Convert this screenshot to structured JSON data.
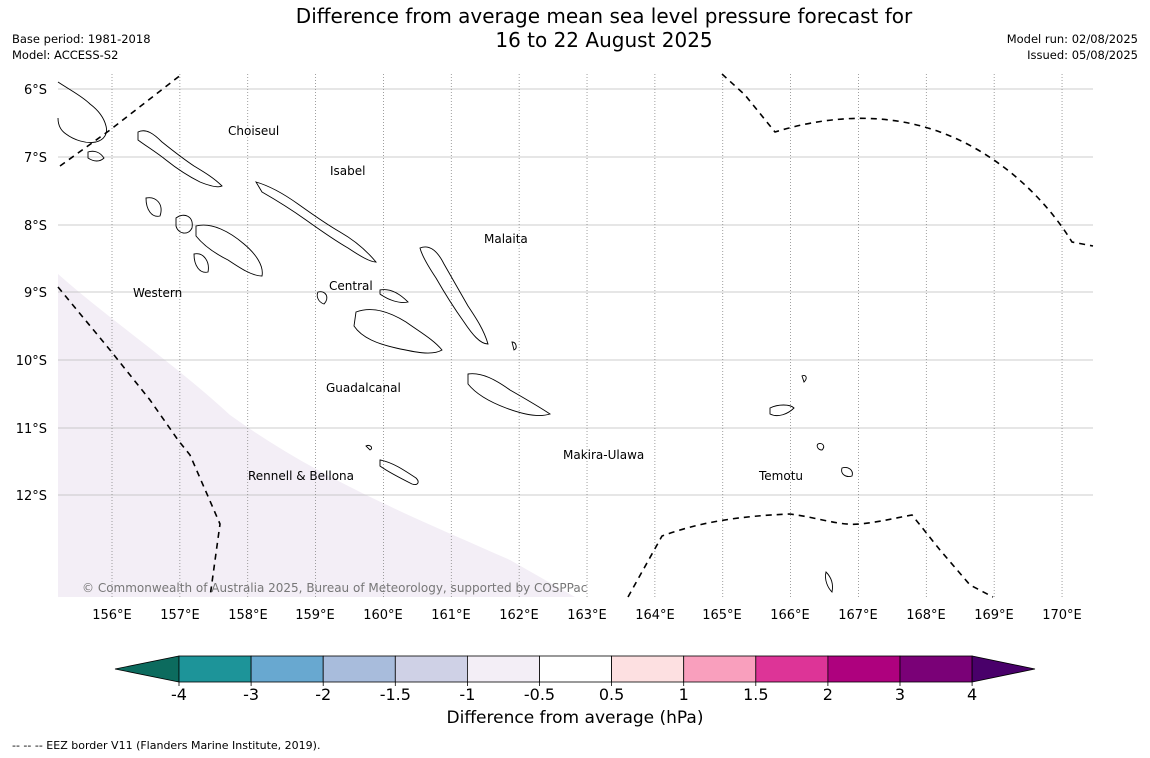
{
  "title": {
    "line1": "Difference from average mean sea level pressure forecast for",
    "line2": "16 to 22 August 2025"
  },
  "meta_left": {
    "base_period": "Base period: 1981-2018",
    "model": "Model: ACCESS-S2"
  },
  "meta_right": {
    "model_run": "Model run: 02/08/2025",
    "issued": "Issued: 05/08/2025"
  },
  "map": {
    "lat_labels": [
      "6°S",
      "7°S",
      "8°S",
      "9°S",
      "10°S",
      "11°S",
      "12°S"
    ],
    "lon_labels": [
      "156°E",
      "157°E",
      "158°E",
      "159°E",
      "160°E",
      "161°E",
      "162°E",
      "163°E",
      "164°E",
      "165°E",
      "166°E",
      "167°E",
      "168°E",
      "169°E",
      "170°E"
    ],
    "place_labels": [
      "Choiseul",
      "Isabel",
      "Malaita",
      "Western",
      "Central",
      "Guadalcanal",
      "Makira-Ulawa",
      "Rennell & Bellona",
      "Temotu"
    ],
    "copyright": "© Commonwealth of Australia 2025, Bureau of Meteorology, supported by COSPPac",
    "anomaly_shading": {
      "range": "-1 to -0.5",
      "color": "#f3eef6"
    }
  },
  "colorbar": {
    "title": "Difference from average (hPa)",
    "ticks": [
      "-4",
      "-3",
      "-2",
      "-1.5",
      "-1",
      "-0.5",
      "0.5",
      "1",
      "1.5",
      "2",
      "3",
      "4"
    ],
    "colors": {
      "extend_low": "#0c6b5e",
      "bins": [
        "#1d9499",
        "#68a8d0",
        "#a8bcdc",
        "#cfd1e6",
        "#f3eef6",
        "#ffffff",
        "#fde0e1",
        "#f99fbd",
        "#dd3497",
        "#ae017e",
        "#7a0177"
      ],
      "extend_high": "#49006a"
    }
  },
  "footnote": "--  --  -- EEZ border V11 (Flanders Marine Institute, 2019)."
}
